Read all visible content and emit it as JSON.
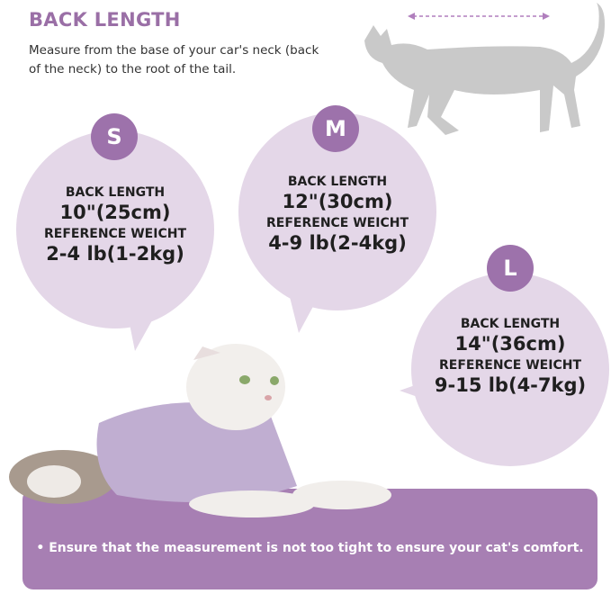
{
  "header": {
    "title": "BACK LENGTH",
    "description": "Measure from the base of your car's neck (back of the neck) to the root of the tail."
  },
  "sizes": [
    {
      "size": "S",
      "back_length_label": "BACK LENGTH",
      "back_length": "10\"(25cm)",
      "weight_label": "REFERENCE WEICHT",
      "weight": "2-4 lb(1-2kg)"
    },
    {
      "size": "M",
      "back_length_label": "BACK LENGTH",
      "back_length": "12\"(30cm)",
      "weight_label": "REFERENCE WEICHT",
      "weight": "4-9 lb(2-4kg)"
    },
    {
      "size": "L",
      "back_length_label": "BACK LENGTH",
      "back_length": "14\"(36cm)",
      "weight_label": "REFERENCE WEICHT",
      "weight": "9-15 lb(4-7kg)"
    }
  ],
  "footer": {
    "note": "• Ensure that the measurement is not too tight to ensure your cat's comfort."
  },
  "colors": {
    "accent": "#9d72ab",
    "bubble": "#e4d7e8",
    "panel": "#a77fb3",
    "silhouette": "#c9c9c9"
  }
}
